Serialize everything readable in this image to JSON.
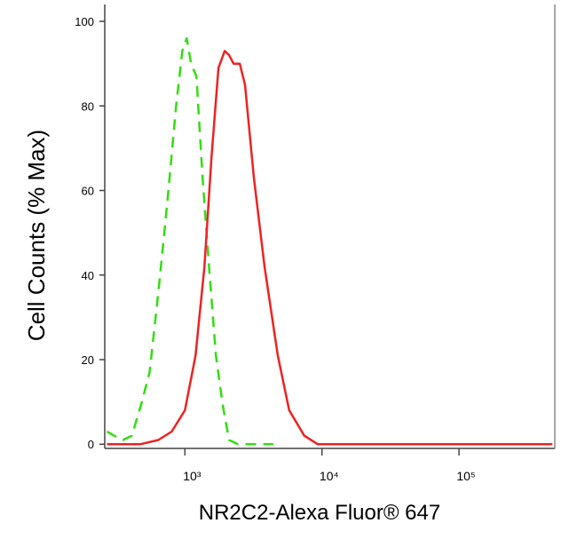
{
  "chart_data": {
    "type": "line",
    "xlabel": "NR2C2-Alexa Fluor® 647",
    "ylabel": "Cell Counts (% Max)",
    "xscale": "log",
    "xlim": [
      260,
      500000
    ],
    "ylim": [
      -1,
      104
    ],
    "xticks": [
      {
        "value": 1000,
        "label": "10³"
      },
      {
        "value": 10000,
        "label": "10⁴"
      },
      {
        "value": 100000,
        "label": "10⁵"
      }
    ],
    "yticks": [
      0,
      20,
      40,
      60,
      80,
      100
    ],
    "series": [
      {
        "color": "#33dd11",
        "dash": true,
        "x": [
          270,
          305,
          353,
          410,
          476,
          552,
          640,
          743,
          862,
          957,
          1030,
          1110,
          1213,
          1346,
          1516,
          1682,
          1893,
          2100,
          2440,
          4418
        ],
        "values": [
          3,
          2,
          1,
          2,
          9,
          17,
          36,
          57,
          80,
          93,
          96,
          90,
          87,
          63,
          40,
          21,
          9,
          1,
          0,
          0
        ]
      },
      {
        "color": "#ee2222",
        "dash": false,
        "x": [
          270,
          476,
          640,
          800,
          1000,
          1195,
          1387,
          1563,
          1758,
          1950,
          2100,
          2263,
          2512,
          2746,
          3187,
          3808,
          4756,
          5771,
          7430,
          9290,
          480000
        ],
        "values": [
          0,
          0,
          1,
          3,
          8,
          21,
          42,
          68,
          89,
          93,
          92,
          90,
          90,
          85,
          63,
          42,
          21,
          8,
          2,
          0,
          0
        ]
      }
    ]
  }
}
